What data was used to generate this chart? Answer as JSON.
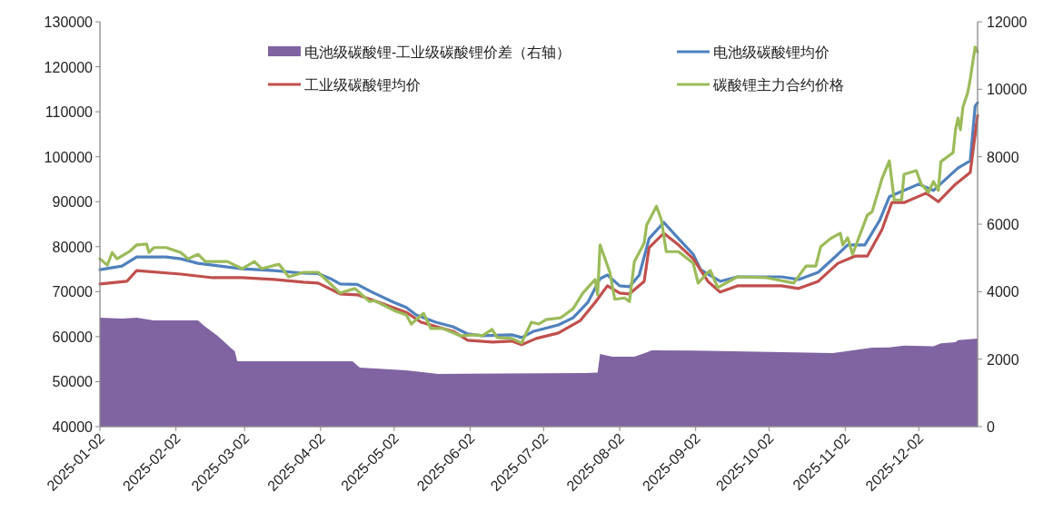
{
  "chart_data": {
    "type": "line",
    "legend": "top",
    "xlim": [
      "2025-01-02",
      "2025-12-26"
    ],
    "xticks": [
      "2025-01-02",
      "2025-02-02",
      "2025-03-02",
      "2025-04-02",
      "2025-05-02",
      "2025-06-02",
      "2025-07-02",
      "2025-08-02",
      "2025-09-02",
      "2025-10-02",
      "2025-11-02",
      "2025-12-02"
    ],
    "ylim": [
      40000,
      130000
    ],
    "yticks": [
      40000,
      50000,
      60000,
      70000,
      80000,
      90000,
      100000,
      110000,
      120000,
      130000
    ],
    "y2lim": [
      0,
      12000
    ],
    "y2ticks": [
      0,
      2000,
      4000,
      6000,
      8000,
      10000,
      12000
    ],
    "series": [
      {
        "name": "电池级碳酸锂-工业级碳酸锂价差（右轴）",
        "type": "area",
        "axis": "y2",
        "color": "#8064a2",
        "x": [
          "2025-01-02",
          "2025-01-11",
          "2025-01-17",
          "2025-01-24",
          "2025-02-11",
          "2025-02-14",
          "2025-02-19",
          "2025-02-26",
          "2025-02-27",
          "2025-04-15",
          "2025-04-18",
          "2025-05-07",
          "2025-05-20",
          "2025-07-19",
          "2025-07-24",
          "2025-07-25",
          "2025-07-30",
          "2025-08-08",
          "2025-08-13",
          "2025-08-15",
          "2025-09-07",
          "2025-10-28",
          "2025-11-13",
          "2025-11-20",
          "2025-11-26",
          "2025-12-08",
          "2025-12-11",
          "2025-12-17",
          "2025-12-18",
          "2025-12-26"
        ],
        "values": [
          3230,
          3200,
          3230,
          3150,
          3150,
          2960,
          2690,
          2230,
          1940,
          1940,
          1750,
          1670,
          1560,
          1590,
          1600,
          2150,
          2070,
          2070,
          2200,
          2260,
          2250,
          2180,
          2340,
          2350,
          2400,
          2380,
          2470,
          2500,
          2560,
          2610
        ]
      },
      {
        "name": "电池级碳酸锂均价",
        "color": "#4f81bd",
        "x": [
          "2025-01-02",
          "2025-01-11",
          "2025-01-17",
          "2025-01-29",
          "2025-02-04",
          "2025-02-11",
          "2025-02-17",
          "2025-03-01",
          "2025-03-14",
          "2025-03-26",
          "2025-04-01",
          "2025-04-06",
          "2025-04-10",
          "2025-04-17",
          "2025-04-23",
          "2025-05-02",
          "2025-05-07",
          "2025-05-11",
          "2025-05-19",
          "2025-05-26",
          "2025-06-01",
          "2025-06-07",
          "2025-06-19",
          "2025-06-23",
          "2025-06-28",
          "2025-07-08",
          "2025-07-14",
          "2025-07-20",
          "2025-07-25",
          "2025-07-28",
          "2025-08-02",
          "2025-08-06",
          "2025-08-10",
          "2025-08-14",
          "2025-08-20",
          "2025-08-25",
          "2025-09-01",
          "2025-09-04",
          "2025-09-12",
          "2025-09-19",
          "2025-10-07",
          "2025-10-14",
          "2025-10-22",
          "2025-10-30",
          "2025-11-03",
          "2025-11-10",
          "2025-11-16",
          "2025-11-20",
          "2025-11-26",
          "2025-12-02",
          "2025-12-08",
          "2025-12-12",
          "2025-12-18",
          "2025-12-23",
          "2025-12-25",
          "2025-12-26"
        ],
        "values": [
          74900,
          75700,
          77700,
          77700,
          77300,
          76300,
          75900,
          75100,
          74700,
          74100,
          74000,
          72900,
          71700,
          71600,
          69900,
          67600,
          66500,
          64800,
          63200,
          62200,
          60600,
          60200,
          60400,
          59800,
          61200,
          62600,
          64200,
          67600,
          72900,
          73700,
          71300,
          71100,
          73700,
          81800,
          85400,
          82400,
          78300,
          74900,
          72300,
          73300,
          73300,
          72700,
          74300,
          78300,
          80400,
          80400,
          85800,
          91100,
          92500,
          93900,
          92500,
          94500,
          97500,
          99100,
          111200,
          112000
        ]
      },
      {
        "name": "工业级碳酸锂均价",
        "color": "#c0504d",
        "x": [
          "2025-01-02",
          "2025-01-13",
          "2025-01-17",
          "2025-02-04",
          "2025-02-17",
          "2025-03-01",
          "2025-03-14",
          "2025-03-26",
          "2025-04-01",
          "2025-04-10",
          "2025-04-17",
          "2025-04-26",
          "2025-05-07",
          "2025-05-13",
          "2025-05-26",
          "2025-06-01",
          "2025-06-11",
          "2025-06-19",
          "2025-06-23",
          "2025-06-29",
          "2025-07-08",
          "2025-07-17",
          "2025-07-23",
          "2025-07-28",
          "2025-08-02",
          "2025-08-06",
          "2025-08-12",
          "2025-08-14",
          "2025-08-20",
          "2025-08-26",
          "2025-09-01",
          "2025-09-07",
          "2025-09-12",
          "2025-09-19",
          "2025-10-07",
          "2025-10-14",
          "2025-10-22",
          "2025-10-30",
          "2025-11-06",
          "2025-11-11",
          "2025-11-17",
          "2025-11-21",
          "2025-11-26",
          "2025-12-05",
          "2025-12-10",
          "2025-12-17",
          "2025-12-23",
          "2025-12-26"
        ],
        "values": [
          71700,
          72300,
          74700,
          73900,
          73100,
          73100,
          72700,
          72100,
          71900,
          69500,
          69300,
          67600,
          65400,
          63200,
          61200,
          59200,
          58800,
          59000,
          58200,
          59600,
          60800,
          63600,
          67600,
          71300,
          69700,
          69500,
          72300,
          79800,
          83000,
          80400,
          77300,
          72300,
          69900,
          71300,
          71300,
          70700,
          72300,
          76300,
          77900,
          77900,
          83800,
          89800,
          89800,
          91900,
          90000,
          93900,
          96500,
          109200
        ]
      },
      {
        "name": "碳酸锂主力合约价格",
        "color": "#9bbb59",
        "x": [
          "2025-01-02",
          "2025-01-05",
          "2025-01-07",
          "2025-01-09",
          "2025-01-14",
          "2025-01-17",
          "2025-01-21",
          "2025-01-22",
          "2025-01-24",
          "2025-01-29",
          "2025-02-04",
          "2025-02-07",
          "2025-02-11",
          "2025-02-14",
          "2025-02-23",
          "2025-03-01",
          "2025-03-06",
          "2025-03-09",
          "2025-03-16",
          "2025-03-20",
          "2025-03-26",
          "2025-04-01",
          "2025-04-10",
          "2025-04-16",
          "2025-04-22",
          "2025-04-24",
          "2025-05-02",
          "2025-05-07",
          "2025-05-09",
          "2025-05-14",
          "2025-05-17",
          "2025-05-22",
          "2025-05-29",
          "2025-06-04",
          "2025-06-07",
          "2025-06-11",
          "2025-06-13",
          "2025-06-19",
          "2025-06-23",
          "2025-06-27",
          "2025-06-30",
          "2025-07-03",
          "2025-07-09",
          "2025-07-14",
          "2025-07-18",
          "2025-07-23",
          "2025-07-24",
          "2025-07-25",
          "2025-07-29",
          "2025-07-31",
          "2025-08-04",
          "2025-08-06",
          "2025-08-08",
          "2025-08-12",
          "2025-08-13",
          "2025-08-17",
          "2025-08-19",
          "2025-08-21",
          "2025-08-26",
          "2025-09-01",
          "2025-09-03",
          "2025-09-07",
          "2025-09-08",
          "2025-09-11",
          "2025-09-19",
          "2025-10-01",
          "2025-10-12",
          "2025-10-17",
          "2025-10-21",
          "2025-10-23",
          "2025-10-27",
          "2025-10-31",
          "2025-11-01",
          "2025-11-03",
          "2025-11-05",
          "2025-11-11",
          "2025-11-13",
          "2025-11-17",
          "2025-11-20",
          "2025-11-22",
          "2025-11-25",
          "2025-11-26",
          "2025-12-01",
          "2025-12-03",
          "2025-12-06",
          "2025-12-08",
          "2025-12-10",
          "2025-12-11",
          "2025-12-16",
          "2025-12-17",
          "2025-12-18",
          "2025-12-19",
          "2025-12-20",
          "2025-12-22",
          "2025-12-23",
          "2025-12-25",
          "2025-12-26"
        ],
        "values": [
          77300,
          75900,
          78700,
          77300,
          78900,
          80400,
          80600,
          78700,
          79800,
          79800,
          78700,
          77300,
          78300,
          76700,
          76700,
          75100,
          76700,
          75100,
          76100,
          73300,
          74300,
          74300,
          69700,
          70700,
          67800,
          68000,
          65800,
          64800,
          62800,
          65200,
          61800,
          61800,
          60200,
          60400,
          60200,
          61600,
          59800,
          59600,
          58600,
          63200,
          62800,
          63800,
          64200,
          66200,
          69700,
          72700,
          69300,
          80400,
          74300,
          68300,
          68600,
          67800,
          76700,
          80800,
          84800,
          89000,
          86000,
          78900,
          78900,
          76300,
          71900,
          74300,
          74700,
          70900,
          73300,
          73100,
          71900,
          75700,
          75700,
          80000,
          81800,
          83000,
          80400,
          82000,
          78300,
          87000,
          87800,
          95100,
          99100,
          90400,
          90400,
          96100,
          96900,
          93900,
          92100,
          94500,
          92500,
          98900,
          100900,
          106000,
          108600,
          106000,
          111000,
          114300,
          117300,
          124400,
          123300
        ]
      }
    ]
  }
}
